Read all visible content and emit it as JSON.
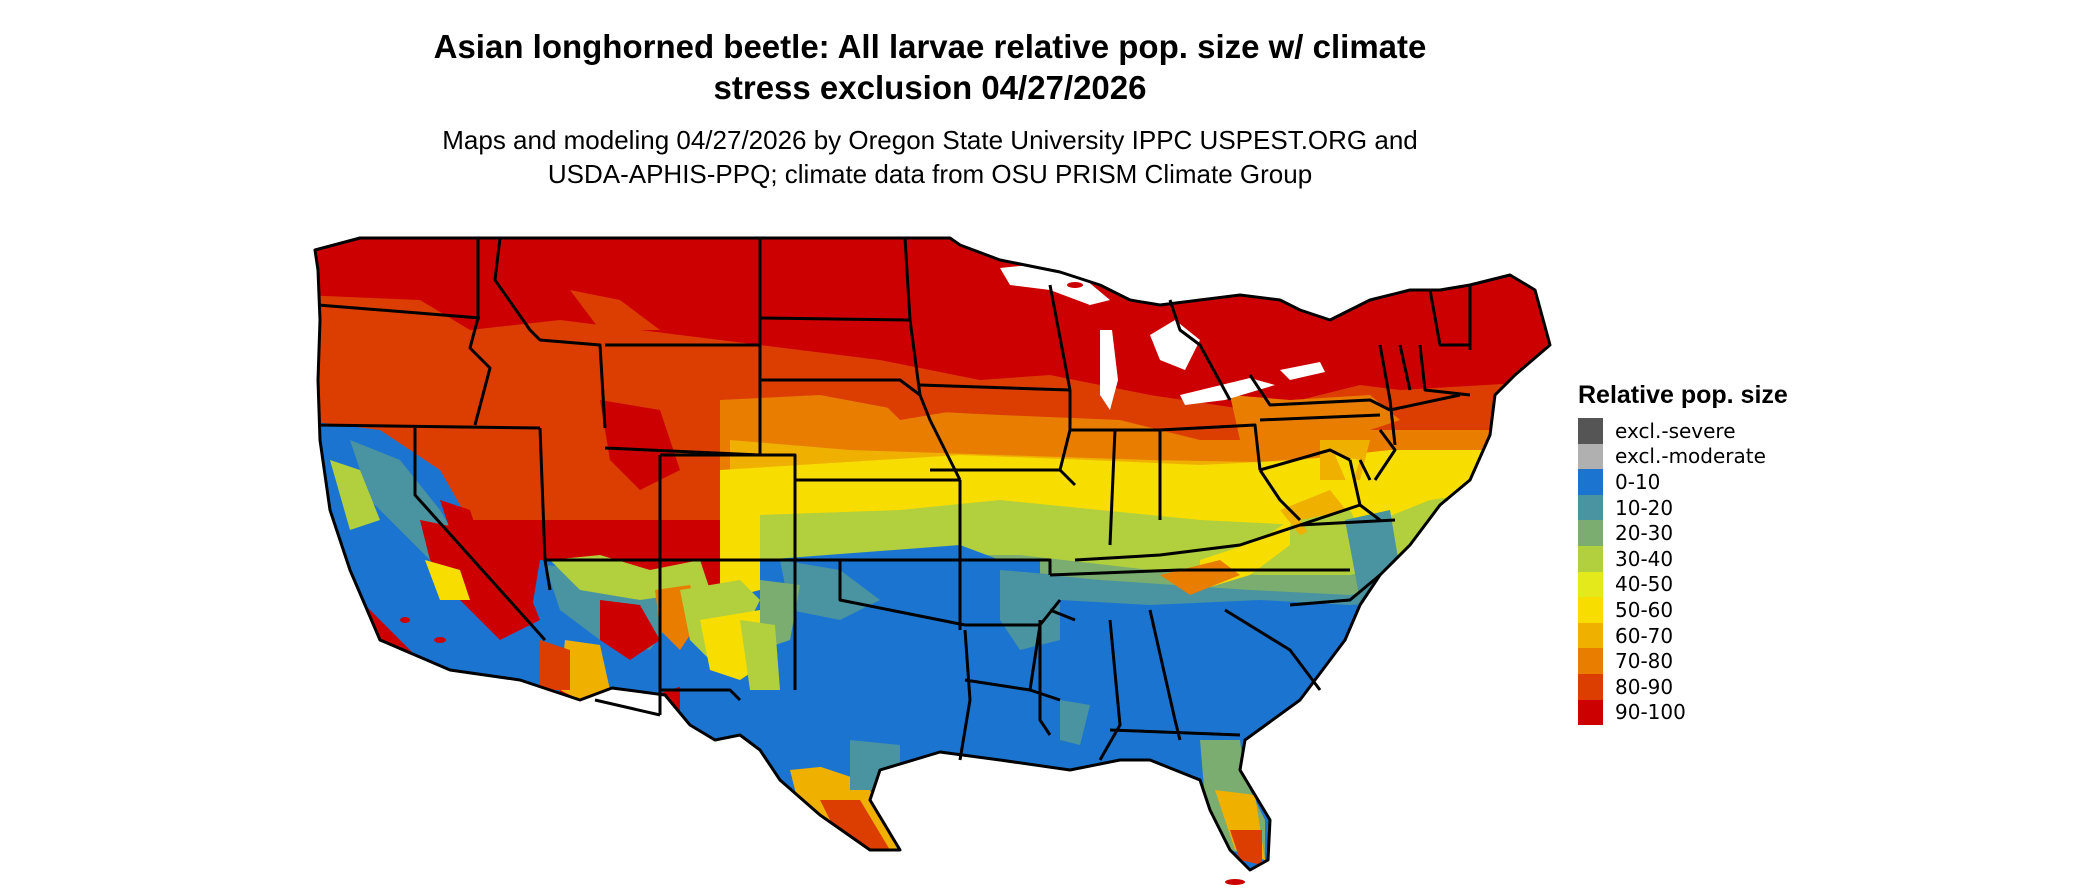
{
  "title_line1": "Asian longhorned beetle: All larvae relative pop. size w/ climate",
  "title_line2": "stress exclusion 04/27/2026",
  "subtitle_line1": "Maps and modeling 04/27/2026 by Oregon State University IPPC USPEST.ORG and",
  "subtitle_line2": "USDA-APHIS-PPQ; climate data from OSU PRISM Climate Group",
  "legend": {
    "title": "Relative pop. size",
    "items": [
      {
        "label": "excl.-severe",
        "color": "#555555"
      },
      {
        "label": "excl.-moderate",
        "color": "#b0b0b0"
      },
      {
        "label": "0-10",
        "color": "#1b75d0"
      },
      {
        "label": "10-20",
        "color": "#4a93a0"
      },
      {
        "label": "20-30",
        "color": "#7aad6f"
      },
      {
        "label": "30-40",
        "color": "#b2cf3d"
      },
      {
        "label": "40-50",
        "color": "#e3e91b"
      },
      {
        "label": "50-60",
        "color": "#f7de00"
      },
      {
        "label": "60-70",
        "color": "#f0b000"
      },
      {
        "label": "70-80",
        "color": "#e87d00"
      },
      {
        "label": "80-90",
        "color": "#db3e00"
      },
      {
        "label": "90-100",
        "color": "#cc0000"
      }
    ]
  }
}
